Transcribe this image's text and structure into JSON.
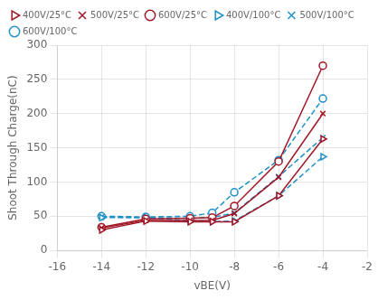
{
  "chart_data": {
    "type": "line",
    "x": [
      -14,
      -12,
      -10,
      -9,
      -8,
      -6,
      -4
    ],
    "series": [
      {
        "name": "400V/25°C",
        "color": "#a01828",
        "marker": "triangle-right",
        "line_style": "solid",
        "values": [
          30,
          43,
          42,
          42,
          42,
          80,
          163
        ]
      },
      {
        "name": "500V/25°C",
        "color": "#a01828",
        "marker": "x",
        "line_style": "solid",
        "values": [
          33,
          44,
          44,
          44,
          54,
          107,
          200
        ]
      },
      {
        "name": "600V/25°C",
        "color": "#a01828",
        "marker": "circle",
        "line_style": "solid",
        "values": [
          34,
          46,
          47,
          48,
          65,
          130,
          270
        ]
      },
      {
        "name": "400V/100°C",
        "color": "#1e90c8",
        "marker": "triangle-right",
        "line_style": "dashed",
        "values": [
          48,
          48,
          43,
          42,
          43,
          80,
          137
        ]
      },
      {
        "name": "500V/100°C",
        "color": "#1e90c8",
        "marker": "x",
        "line_style": "dashed",
        "values": [
          49,
          48,
          47,
          48,
          55,
          108,
          165
        ]
      },
      {
        "name": "600V/100°C",
        "color": "#1e90c8",
        "marker": "circle",
        "line_style": "dashed",
        "values": [
          50,
          49,
          50,
          55,
          85,
          132,
          222
        ]
      }
    ],
    "xlabel": "vBE(V)",
    "ylabel": "Shoot Through Charge(nC)",
    "xlim": [
      -16,
      -2
    ],
    "ylim": [
      0,
      300
    ],
    "xticks": [
      -16,
      -14,
      -12,
      -10,
      -8,
      -6,
      -4,
      -2
    ],
    "yticks": [
      0,
      50,
      100,
      150,
      200,
      250,
      300
    ],
    "grid": true,
    "legend": "upper left"
  }
}
